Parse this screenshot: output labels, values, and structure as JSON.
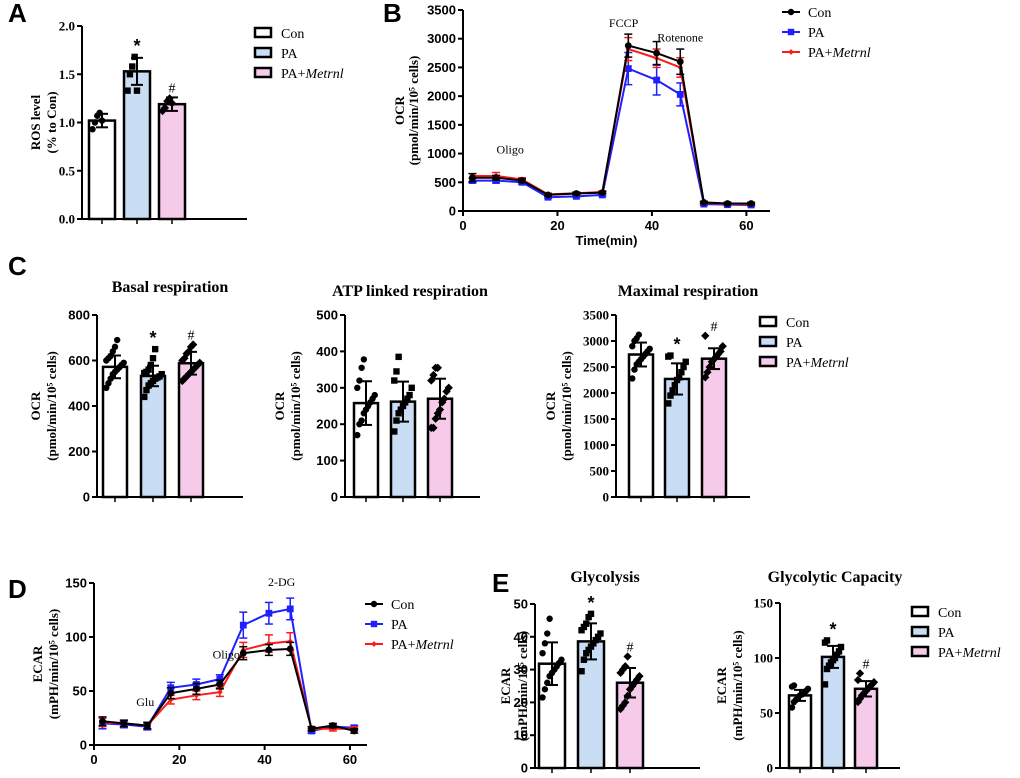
{
  "colors": {
    "con_fill": "#ffffff",
    "pa_fill": "#c9def5",
    "metrnl_fill": "#f6cbea",
    "con_line": "#000000",
    "pa_line": "#1f1fff",
    "metrnl_line": "#ff1a1a",
    "axis": "#000000"
  },
  "legend": {
    "con": "Con",
    "pa": "PA",
    "metrnl_prefix": "PA+",
    "metrnl_italic": "Metrnl"
  },
  "chart_data": [
    {
      "id": "A",
      "panel_label": "A",
      "type": "bar",
      "title": "",
      "ylabel_line1": "ROS level",
      "ylabel_line2": "(% to Con)",
      "ylim": [
        0,
        2.0
      ],
      "yticks": [
        "0.0",
        "0.5",
        "1.0",
        "1.5",
        "2.0"
      ],
      "ytick_values": [
        0,
        0.5,
        1.0,
        1.5,
        2.0
      ],
      "categories": [
        "Con",
        "PA",
        "PA+Metrnl"
      ],
      "values": [
        1.02,
        1.53,
        1.19
      ],
      "errors": [
        0.07,
        0.14,
        0.07
      ],
      "significance": [
        "",
        "*",
        "#"
      ],
      "points": [
        [
          0.93,
          1.0,
          1.07,
          1.1,
          1.02
        ],
        [
          1.33,
          1.5,
          1.58,
          1.68,
          1.33
        ],
        [
          1.12,
          1.15,
          1.22,
          1.25,
          1.2
        ]
      ],
      "markers": [
        "circle",
        "square",
        "diamond"
      ],
      "legend": "right"
    },
    {
      "id": "B",
      "panel_label": "B",
      "type": "line",
      "title": "",
      "ylabel_line1": "OCR",
      "ylabel_line2": "(pmol/min/10⁵ cells)",
      "xlabel": "Time(min)",
      "ylim": [
        0,
        3500
      ],
      "yticks": [
        "0",
        "500",
        "1000",
        "1500",
        "2000",
        "2500",
        "3000",
        "3500"
      ],
      "ytick_values": [
        0,
        500,
        1000,
        1500,
        2000,
        2500,
        3000,
        3500
      ],
      "xlim": [
        0,
        65
      ],
      "xticks": [
        "0",
        "20",
        "40",
        "60"
      ],
      "xtick_values": [
        0,
        20,
        40,
        60
      ],
      "x": [
        2,
        7,
        12.5,
        18,
        24,
        29.5,
        35,
        41,
        46,
        51,
        56,
        61
      ],
      "series": [
        {
          "name": "Con",
          "values": [
            580,
            580,
            530,
            280,
            305,
            320,
            2880,
            2750,
            2600,
            150,
            130,
            130
          ],
          "errors": [
            70,
            40,
            30,
            20,
            20,
            20,
            200,
            200,
            220,
            20,
            20,
            20
          ],
          "marker": "circle"
        },
        {
          "name": "PA",
          "values": [
            530,
            530,
            500,
            240,
            255,
            280,
            2480,
            2280,
            2030,
            120,
            110,
            105
          ],
          "errors": [
            40,
            40,
            30,
            20,
            20,
            20,
            280,
            260,
            200,
            20,
            20,
            20
          ],
          "marker": "square"
        },
        {
          "name": "PA+Metrnl",
          "values": [
            610,
            610,
            550,
            290,
            310,
            330,
            2820,
            2660,
            2500,
            140,
            120,
            120
          ],
          "errors": [
            40,
            60,
            30,
            20,
            20,
            20,
            200,
            160,
            170,
            20,
            20,
            20
          ],
          "marker": "diamond"
        }
      ],
      "annotations": [
        {
          "text": "Oligo",
          "x": 10,
          "y": 1000
        },
        {
          "text": "FCCP",
          "x": 34,
          "y": 3200
        },
        {
          "text": "Rotenone",
          "x": 46,
          "y": 2950
        }
      ],
      "legend": "top-right"
    },
    {
      "id": "C1",
      "panel_label": "C",
      "type": "bar",
      "title": "Basal respiration",
      "ylabel_line1": "OCR",
      "ylabel_line2": "(pmol/min/10⁵ cells)",
      "ylim": [
        0,
        800
      ],
      "yticks": [
        "0",
        "200",
        "400",
        "600",
        "800"
      ],
      "ytick_values": [
        0,
        200,
        400,
        600,
        800
      ],
      "categories": [
        "Con",
        "PA",
        "PA+Metrnl"
      ],
      "values": [
        572,
        532,
        588
      ],
      "errors": [
        50,
        45,
        50
      ],
      "significance": [
        "",
        "*",
        "#"
      ],
      "points": [
        [
          480,
          500,
          520,
          540,
          550,
          560,
          570,
          580,
          590,
          600,
          610,
          620,
          640,
          660,
          690
        ],
        [
          440,
          470,
          490,
          500,
          510,
          520,
          525,
          530,
          540,
          545,
          550,
          560,
          580,
          610,
          650
        ],
        [
          510,
          520,
          530,
          540,
          550,
          560,
          570,
          580,
          590,
          600,
          610,
          630,
          640,
          660,
          670
        ]
      ],
      "markers": [
        "circle",
        "square",
        "diamond"
      ]
    },
    {
      "id": "C2",
      "panel_label": "",
      "type": "bar",
      "title": "ATP linked respiration",
      "ylabel_line1": "OCR",
      "ylabel_line2": "(pmol/min/10⁵ cells)",
      "ylim": [
        0,
        500
      ],
      "yticks": [
        "0",
        "100",
        "200",
        "300",
        "400",
        "500"
      ],
      "ytick_values": [
        0,
        100,
        200,
        300,
        400,
        500
      ],
      "categories": [
        "Con",
        "PA",
        "PA+Metrnl"
      ],
      "values": [
        258,
        262,
        270
      ],
      "errors": [
        60,
        55,
        55
      ],
      "significance": [
        "",
        "",
        ""
      ],
      "points": [
        [
          170,
          200,
          210,
          230,
          240,
          250,
          260,
          270,
          280,
          300,
          320,
          355,
          378
        ],
        [
          180,
          210,
          230,
          240,
          250,
          260,
          270,
          280,
          300,
          320,
          345,
          385
        ],
        [
          190,
          190,
          215,
          230,
          240,
          260,
          270,
          290,
          300,
          320,
          335,
          355,
          355
        ]
      ],
      "markers": [
        "circle",
        "square",
        "diamond"
      ]
    },
    {
      "id": "C3",
      "panel_label": "",
      "type": "bar",
      "title": "Maximal respiration",
      "ylabel_line1": "OCR",
      "ylabel_line2": "(pmol/min/10⁵ cells)",
      "ylim": [
        0,
        3500
      ],
      "yticks": [
        "0",
        "500",
        "1000",
        "1500",
        "2000",
        "2500",
        "3000",
        "3500"
      ],
      "ytick_values": [
        0,
        500,
        1000,
        1500,
        2000,
        2500,
        3000,
        3500
      ],
      "categories": [
        "Con",
        "PA",
        "PA+Metrnl"
      ],
      "values": [
        2740,
        2270,
        2660
      ],
      "errors": [
        230,
        300,
        200
      ],
      "significance": [
        "",
        "*",
        "#"
      ],
      "points": [
        [
          2280,
          2450,
          2550,
          2600,
          2650,
          2700,
          2750,
          2800,
          2850,
          2900,
          3000,
          3050,
          3120
        ],
        [
          1800,
          1950,
          2050,
          2150,
          2250,
          2300,
          2400,
          2500,
          2600,
          2700,
          2720
        ],
        [
          2300,
          2400,
          2500,
          2600,
          2650,
          2700,
          2750,
          2800,
          2900,
          3100
        ]
      ],
      "markers": [
        "circle",
        "square",
        "diamond"
      ],
      "legend": "right"
    },
    {
      "id": "D",
      "panel_label": "D",
      "type": "line",
      "title": "",
      "ylabel_line1": "ECAR",
      "ylabel_line2": "(mPH/min/10⁵ cells)",
      "xlabel": "",
      "ylim": [
        0,
        150
      ],
      "yticks": [
        "0",
        "50",
        "100",
        "150"
      ],
      "ytick_values": [
        0,
        50,
        100,
        150
      ],
      "xlim": [
        0,
        64
      ],
      "xticks": [
        "0",
        "20",
        "40",
        "60"
      ],
      "xtick_values": [
        0,
        20,
        40,
        60
      ],
      "x": [
        2,
        7,
        12.5,
        18,
        24,
        29.5,
        35,
        41,
        46,
        51,
        56,
        61
      ],
      "series": [
        {
          "name": "Con",
          "values": [
            22,
            20,
            18,
            48,
            52,
            56,
            85,
            88,
            89,
            15,
            18,
            13
          ],
          "errors": [
            4,
            3,
            3,
            5,
            5,
            4,
            6,
            5,
            6,
            2,
            2,
            2
          ],
          "marker": "circle"
        },
        {
          "name": "PA",
          "values": [
            20,
            19,
            17,
            53,
            56,
            61,
            111,
            122,
            126,
            13,
            17,
            16
          ],
          "errors": [
            5,
            3,
            3,
            5,
            5,
            4,
            12,
            10,
            10,
            2,
            2,
            2
          ],
          "marker": "square"
        },
        {
          "name": "PA+Metrnl",
          "values": [
            21,
            20,
            18,
            42,
            46,
            49,
            88,
            94,
            96,
            15,
            15,
            15
          ],
          "errors": [
            4,
            3,
            3,
            4,
            4,
            4,
            7,
            8,
            8,
            2,
            2,
            2
          ],
          "marker": "diamond"
        }
      ],
      "annotations": [
        {
          "text": "Glu",
          "x": 12,
          "y": 36
        },
        {
          "text": "Oligo",
          "x": 31,
          "y": 80
        },
        {
          "text": "2-DG",
          "x": 44,
          "y": 147
        }
      ],
      "legend": "top-right"
    },
    {
      "id": "E1",
      "panel_label": "E",
      "type": "bar",
      "title": "Glycolysis",
      "ylabel_line1": "ECAR",
      "ylabel_line2": "(mPH/min/10⁵ cells)",
      "ylim": [
        0,
        50
      ],
      "yticks": [
        "0",
        "10",
        "20",
        "30",
        "40",
        "50"
      ],
      "ytick_values": [
        0,
        10,
        20,
        30,
        40,
        50
      ],
      "categories": [
        "Con",
        "PA",
        "PA+Metrnl"
      ],
      "values": [
        31.8,
        38.6,
        26.0
      ],
      "errors": [
        6.5,
        5.5,
        4.5
      ],
      "significance": [
        "",
        "*",
        "#"
      ],
      "points": [
        [
          21.5,
          24,
          26,
          28,
          29,
          30,
          31,
          32,
          33,
          35,
          38,
          41,
          45.5
        ],
        [
          29.5,
          33,
          35,
          36,
          37,
          38,
          39,
          40,
          41,
          42,
          43,
          44,
          46,
          47
        ],
        [
          18,
          19,
          20,
          22,
          24,
          25,
          26,
          27,
          28,
          29,
          30,
          31,
          34
        ]
      ],
      "markers": [
        "circle",
        "square",
        "diamond"
      ]
    },
    {
      "id": "E2",
      "panel_label": "",
      "type": "bar",
      "title": "Glycolytic Capacity",
      "ylabel_line1": "ECAR",
      "ylabel_line2": "(mPH/min/10⁵ cells)",
      "ylim": [
        0,
        150
      ],
      "yticks": [
        "0",
        "50",
        "100",
        "150"
      ],
      "ytick_values": [
        0,
        50,
        100,
        150
      ],
      "categories": [
        "Con",
        "PA",
        "PA+Metrnl"
      ],
      "values": [
        66,
        101,
        72
      ],
      "errors": [
        5,
        10,
        7
      ],
      "significance": [
        "",
        "*",
        "#"
      ],
      "points": [
        [
          55,
          60,
          62,
          64,
          66,
          67,
          68,
          70,
          72,
          74,
          75
        ],
        [
          76,
          90,
          93,
          96,
          98,
          100,
          103,
          106,
          110,
          114,
          116
        ],
        [
          60,
          63,
          66,
          68,
          70,
          72,
          74,
          76,
          78,
          80,
          86
        ]
      ],
      "markers": [
        "circle",
        "square",
        "diamond"
      ],
      "legend": "right"
    }
  ]
}
